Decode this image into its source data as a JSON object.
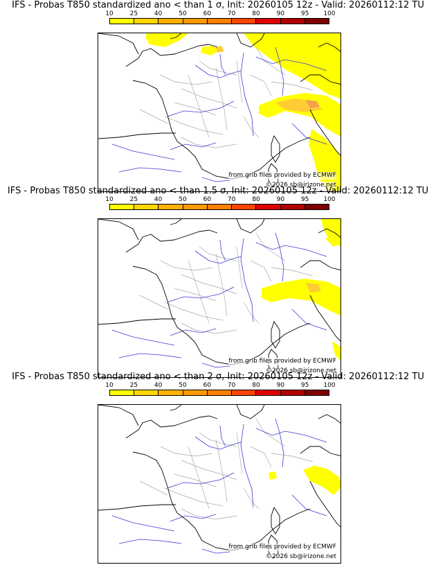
{
  "colorbar": {
    "labels": [
      "10",
      "25",
      "40",
      "50",
      "60",
      "70",
      "80",
      "90",
      "95",
      "100"
    ],
    "colors": [
      "#ffff00",
      "#ffd700",
      "#ffb000",
      "#ff9900",
      "#ff7f00",
      "#ff4500",
      "#e00000",
      "#b00000",
      "#800000"
    ]
  },
  "map_colors": {
    "prob_low": "#ffff00",
    "prob_mid": "#ffcc33",
    "prob_high": "#f5a050",
    "coast": "#000000",
    "rivers": "#3a3ad8",
    "borders": "#a8a8a8"
  },
  "panels": [
    {
      "title": "IFS - Probas T850  standardized ano < than 1 σ, Init: 20260105 12z - Valid: 20260112:12 TU",
      "credit_line1": "from grib files provided by ECMWF",
      "credit_line2": "©2026 sb@irizone.net"
    },
    {
      "title": "IFS - Probas T850  standardized ano < than 1.5 σ, Init: 20260105 12z - Valid: 20260112:12 TU",
      "credit_line1": "from grib files provided by ECMWF",
      "credit_line2": "©2026 sb@irizone.net"
    },
    {
      "title": "IFS - Probas T850  standardized ano < than 2 σ, Init: 20260105 12z - Valid: 20260112:12 TU",
      "credit_line1": "from grib files provided by ECMWF",
      "credit_line2": "©2026 sb@irizone.net"
    }
  ]
}
